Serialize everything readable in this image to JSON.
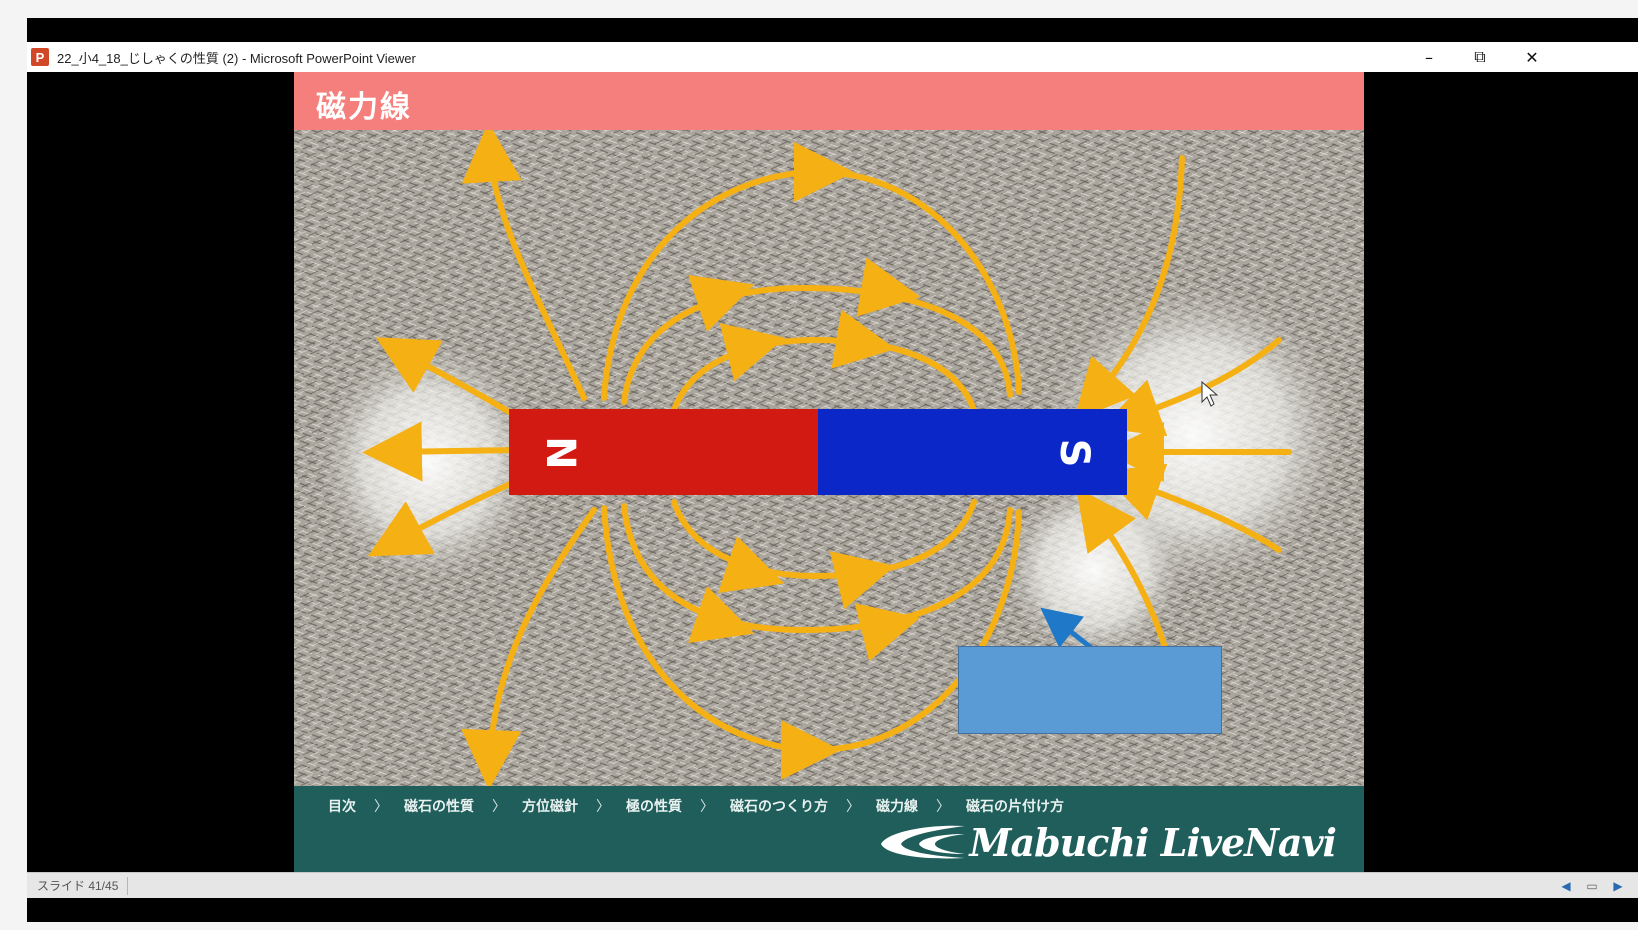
{
  "window": {
    "app_icon": "P",
    "title": "22_小4_18_じしゃくの性質 (2) - Microsoft PowerPoint Viewer",
    "minimize_glyph": "–",
    "restore_glyph": "⧉",
    "close_glyph": "✕"
  },
  "slide": {
    "title": "磁力線",
    "magnet": {
      "north_label": "N",
      "south_label": "S",
      "north_color": "#d21a12",
      "south_color": "#0b27c8"
    },
    "field_line_color": "#f5b014",
    "arrow_color": "#1f78c8",
    "callout_color": "#5b9bd5",
    "header_color": "#f47f7c",
    "footer_color": "#1f5e5a"
  },
  "footer": {
    "nav_items": [
      "目次",
      "磁石の性質",
      "方位磁針",
      "極の性質",
      "磁石のつくり方",
      "磁力線",
      "磁石の片付け方"
    ],
    "nav_separator": "〉",
    "logo_text": "Mabuchi LiveNavi",
    "logo_icon": "swoosh-icon"
  },
  "status": {
    "slide_counter": "スライド 41/45",
    "prev_icon": "◀",
    "notes_icon": "▭",
    "next_icon": "▶"
  }
}
